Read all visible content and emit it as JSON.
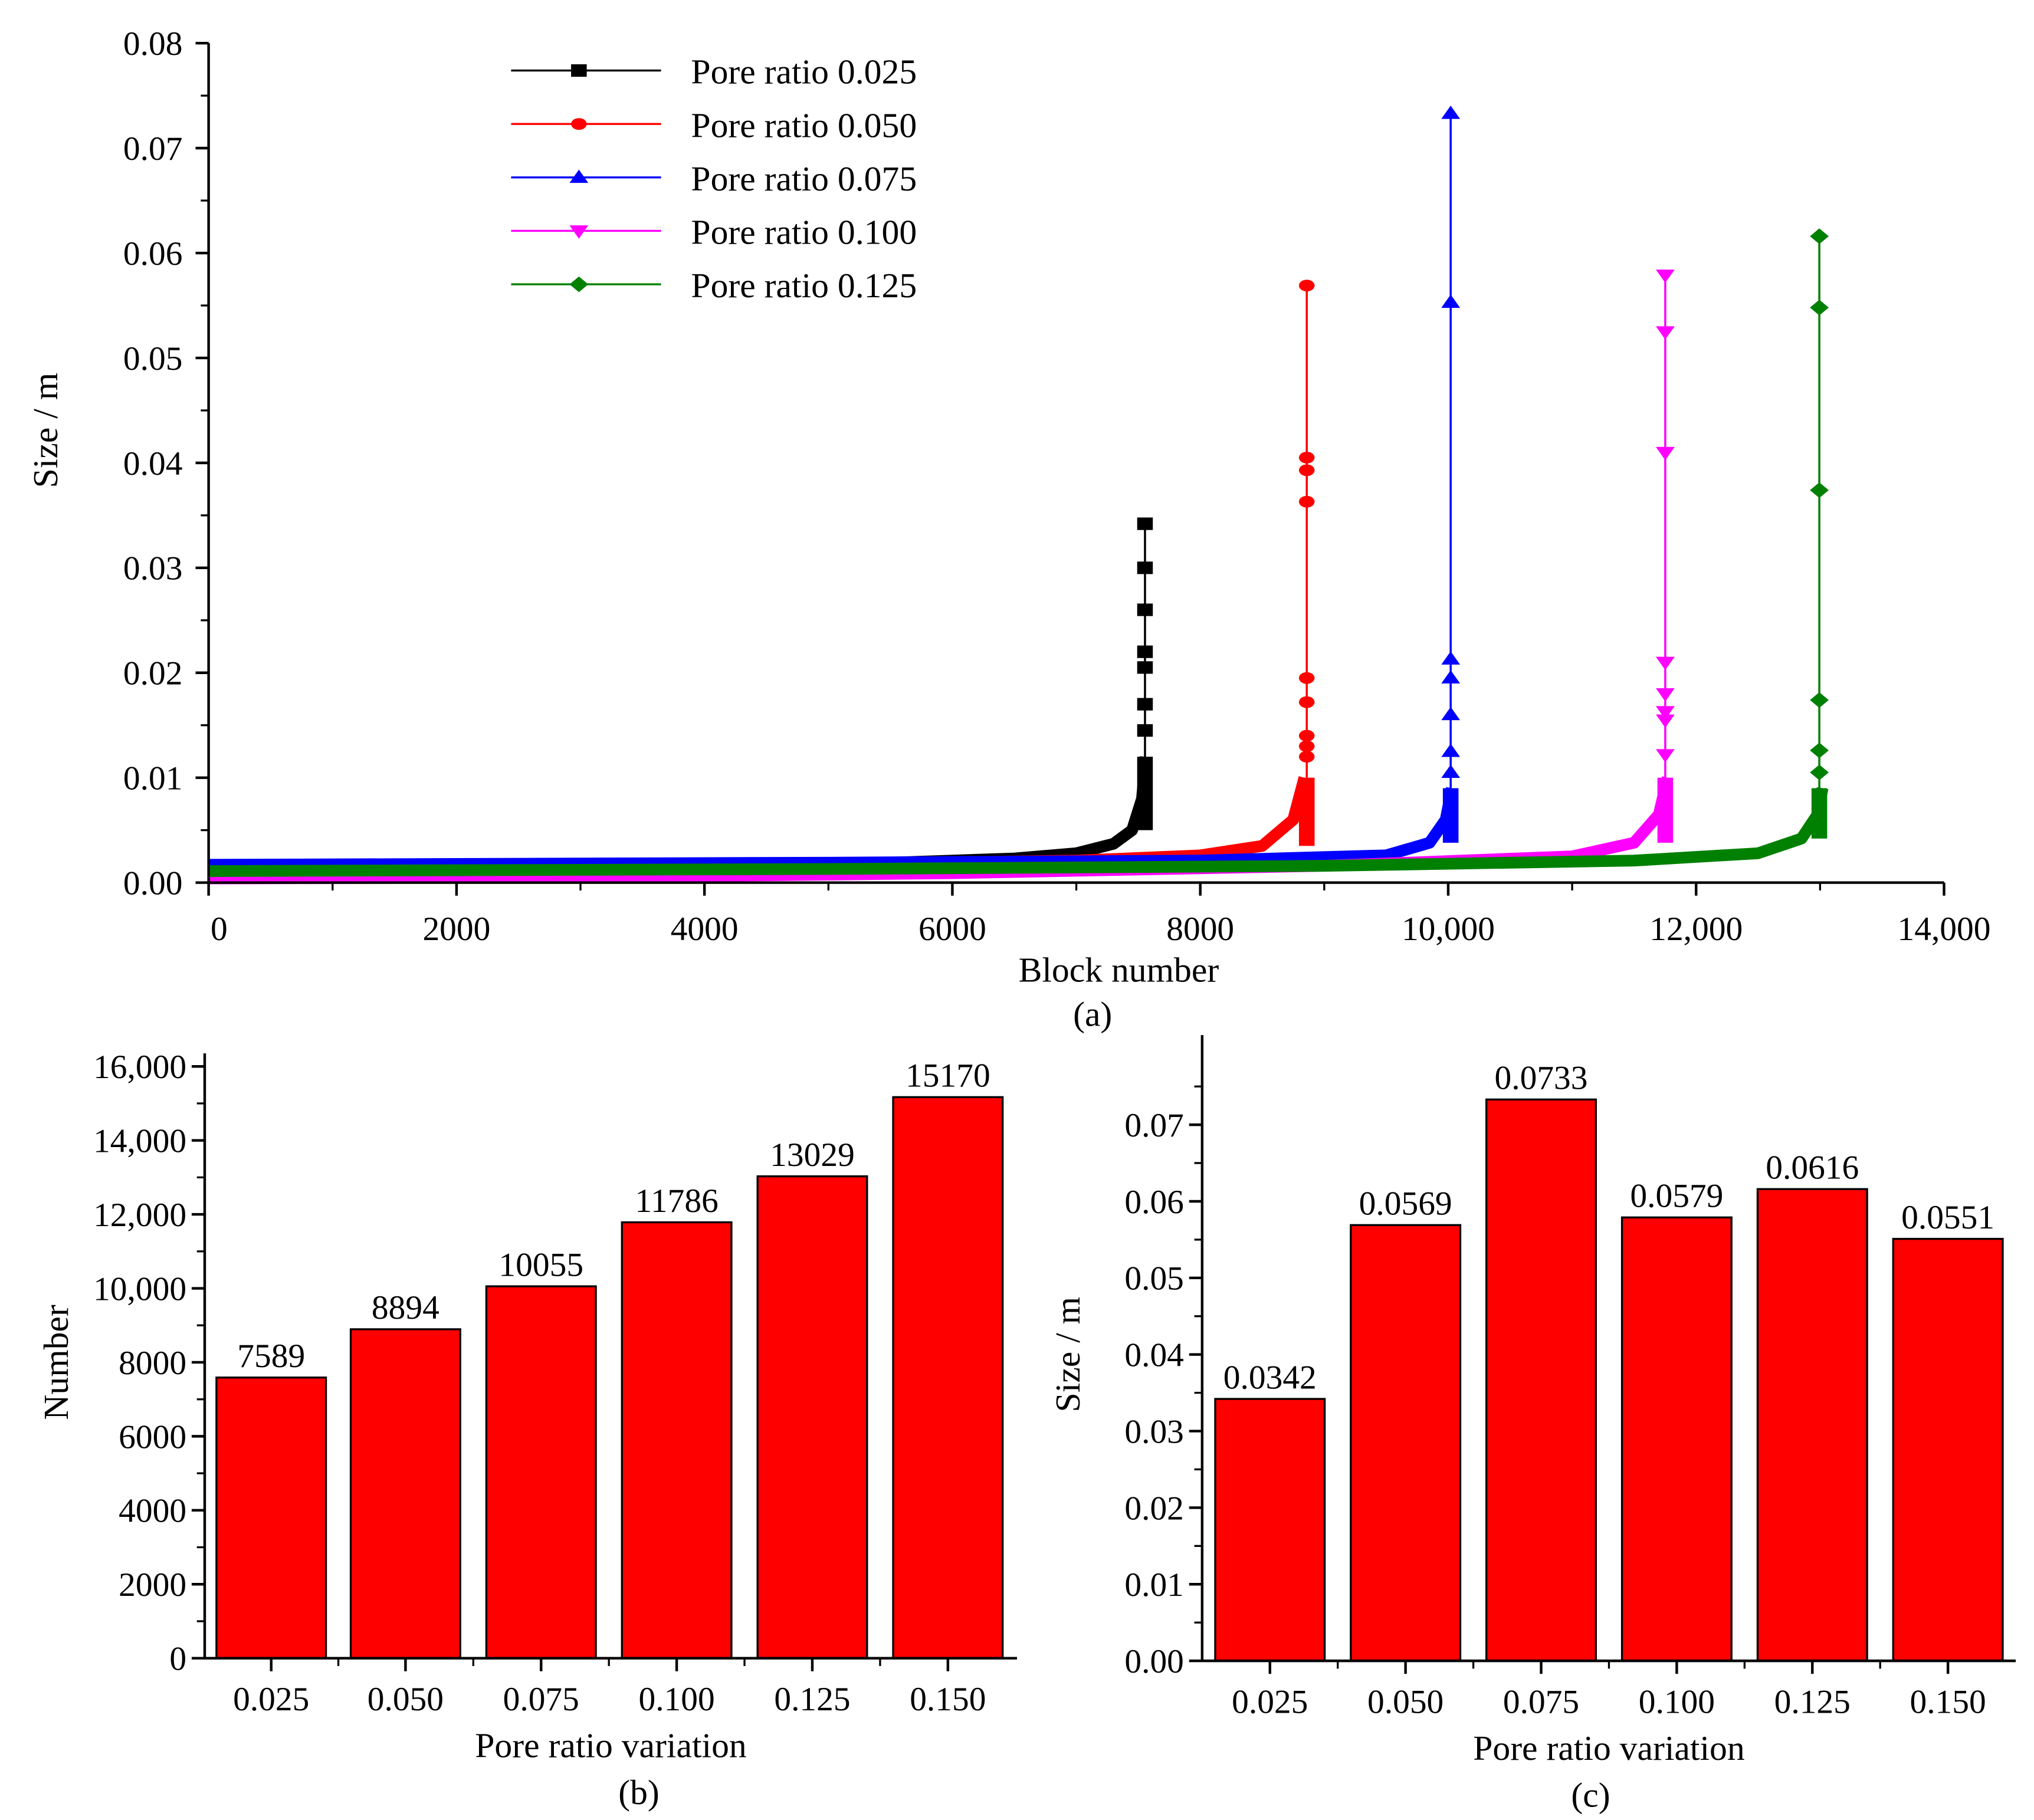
{
  "chart_data": [
    {
      "type": "line",
      "panel_label": "(a)",
      "xlabel": "Block number",
      "ylabel": "Size / m",
      "xlim": [
        0,
        14000
      ],
      "ylim": [
        0,
        0.08
      ],
      "xticks": [
        "0",
        "2000",
        "4000",
        "6000",
        "8000",
        "10,000",
        "12,000",
        "14,000"
      ],
      "xtick_values": [
        0,
        2000,
        4000,
        6000,
        8000,
        10000,
        12000,
        14000
      ],
      "yticks": [
        "0.00",
        "0.01",
        "0.02",
        "0.03",
        "0.04",
        "0.05",
        "0.06",
        "0.07",
        "0.08"
      ],
      "ytick_values": [
        0,
        0.01,
        0.02,
        0.03,
        0.04,
        0.05,
        0.06,
        0.07,
        0.08
      ],
      "legend_position": "top-left",
      "series": [
        {
          "name": "Pore ratio 0.025",
          "color": "#000000",
          "marker": "square",
          "end": 7589,
          "curve": [
            [
              0,
              0.0016
            ],
            [
              3000,
              0.0017
            ],
            [
              5500,
              0.0019
            ],
            [
              6500,
              0.0023
            ],
            [
              7000,
              0.0028
            ],
            [
              7300,
              0.0037
            ],
            [
              7450,
              0.005
            ],
            [
              7530,
              0.008
            ],
            [
              7560,
              0.012
            ]
          ],
          "tail": [
            0.0145,
            0.017,
            0.0205,
            0.022,
            0.026,
            0.03,
            0.0342
          ]
        },
        {
          "name": "Pore ratio 0.050",
          "color": "#ff0000",
          "marker": "circle",
          "end": 8894,
          "curve": [
            [
              0,
              0.0012
            ],
            [
              4000,
              0.0016
            ],
            [
              7000,
              0.0021
            ],
            [
              8000,
              0.0026
            ],
            [
              8500,
              0.0035
            ],
            [
              8750,
              0.006
            ],
            [
              8840,
              0.01
            ]
          ],
          "tail": [
            0.012,
            0.013,
            0.014,
            0.0172,
            0.0195,
            0.0363,
            0.0393,
            0.0405,
            0.0569
          ]
        },
        {
          "name": "Pore ratio 0.075",
          "color": "#0000ff",
          "marker": "triangle-up",
          "end": 10055,
          "curve": [
            [
              0,
              0.0017
            ],
            [
              5000,
              0.0019
            ],
            [
              8000,
              0.0021
            ],
            [
              9500,
              0.0026
            ],
            [
              9850,
              0.0038
            ],
            [
              9980,
              0.006
            ],
            [
              10030,
              0.009
            ]
          ],
          "tail": [
            0.0105,
            0.0125,
            0.016,
            0.0195,
            0.0213,
            0.0553,
            0.0733
          ]
        },
        {
          "name": "Pore ratio 0.100",
          "color": "#ff00ff",
          "marker": "triangle-down",
          "end": 11786,
          "curve": [
            [
              0,
              0.0004
            ],
            [
              3000,
              0.0005
            ],
            [
              6000,
              0.0009
            ],
            [
              9000,
              0.0016
            ],
            [
              11000,
              0.0025
            ],
            [
              11500,
              0.0038
            ],
            [
              11700,
              0.0065
            ],
            [
              11770,
              0.01
            ]
          ],
          "tail": [
            0.0122,
            0.0155,
            0.0163,
            0.018,
            0.021,
            0.041,
            0.0525,
            0.0579
          ]
        },
        {
          "name": "Pore ratio 0.125",
          "color": "#008000",
          "marker": "diamond",
          "end": 13029,
          "curve": [
            [
              0,
              0.0011
            ],
            [
              5000,
              0.0013
            ],
            [
              9000,
              0.0016
            ],
            [
              11500,
              0.0021
            ],
            [
              12500,
              0.0028
            ],
            [
              12850,
              0.0042
            ],
            [
              12980,
              0.0065
            ],
            [
              13020,
              0.009
            ]
          ],
          "tail": [
            0.0105,
            0.0126,
            0.0174,
            0.0374,
            0.0548,
            0.0616
          ]
        }
      ]
    },
    {
      "type": "bar",
      "panel_label": "(b)",
      "xlabel": "Pore ratio variation",
      "ylabel": "Number",
      "categories": [
        "0.025",
        "0.050",
        "0.075",
        "0.100",
        "0.125",
        "0.150"
      ],
      "values": [
        7589,
        8894,
        10055,
        11786,
        13029,
        15170
      ],
      "data_labels": [
        "7589",
        "8894",
        "10055",
        "11786",
        "13029",
        "15170"
      ],
      "ylim": [
        0,
        16000
      ],
      "yticks": [
        "0",
        "2000",
        "4000",
        "6000",
        "8000",
        "10,000",
        "12,000",
        "14,000",
        "16,000"
      ],
      "ytick_values": [
        0,
        2000,
        4000,
        6000,
        8000,
        10000,
        12000,
        14000,
        16000
      ],
      "color": "#ff0000"
    },
    {
      "type": "bar",
      "panel_label": "(c)",
      "xlabel": "Pore ratio variation",
      "ylabel": "Size / m",
      "categories": [
        "0.025",
        "0.050",
        "0.075",
        "0.100",
        "0.125",
        "0.150"
      ],
      "values": [
        0.0342,
        0.0569,
        0.0733,
        0.0579,
        0.0616,
        0.0551
      ],
      "data_labels": [
        "0.0342",
        "0.0569",
        "0.0733",
        "0.0579",
        "0.0616",
        "0.0551"
      ],
      "ylim": [
        0,
        0.08
      ],
      "yticks": [
        "0.00",
        "0.01",
        "0.02",
        "0.03",
        "0.04",
        "0.05",
        "0.06",
        "0.07"
      ],
      "ytick_values": [
        0,
        0.01,
        0.02,
        0.03,
        0.04,
        0.05,
        0.06,
        0.07
      ],
      "color": "#ff0000"
    }
  ]
}
